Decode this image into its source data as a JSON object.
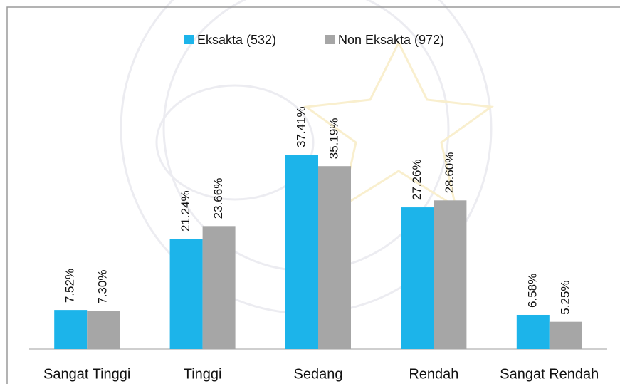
{
  "chart_data": {
    "type": "bar",
    "categories": [
      "Sangat Tinggi",
      "Tinggi",
      "Sedang",
      "Rendah",
      "Sangat Rendah"
    ],
    "series": [
      {
        "name": "Eksakta (532)",
        "color": "#1cb4ea",
        "values": [
          7.52,
          21.24,
          37.41,
          27.26,
          6.58
        ],
        "value_labels": [
          "7.52%",
          "21.24%",
          "37.41%",
          "27.26%",
          "6.58%"
        ]
      },
      {
        "name": "Non Eksakta (972)",
        "color": "#a6a6a6",
        "values": [
          7.3,
          23.66,
          35.19,
          28.6,
          5.25
        ],
        "value_labels": [
          "7.30%",
          "23.66%",
          "35.19%",
          "28.60%",
          "5.25%"
        ]
      }
    ]
  }
}
